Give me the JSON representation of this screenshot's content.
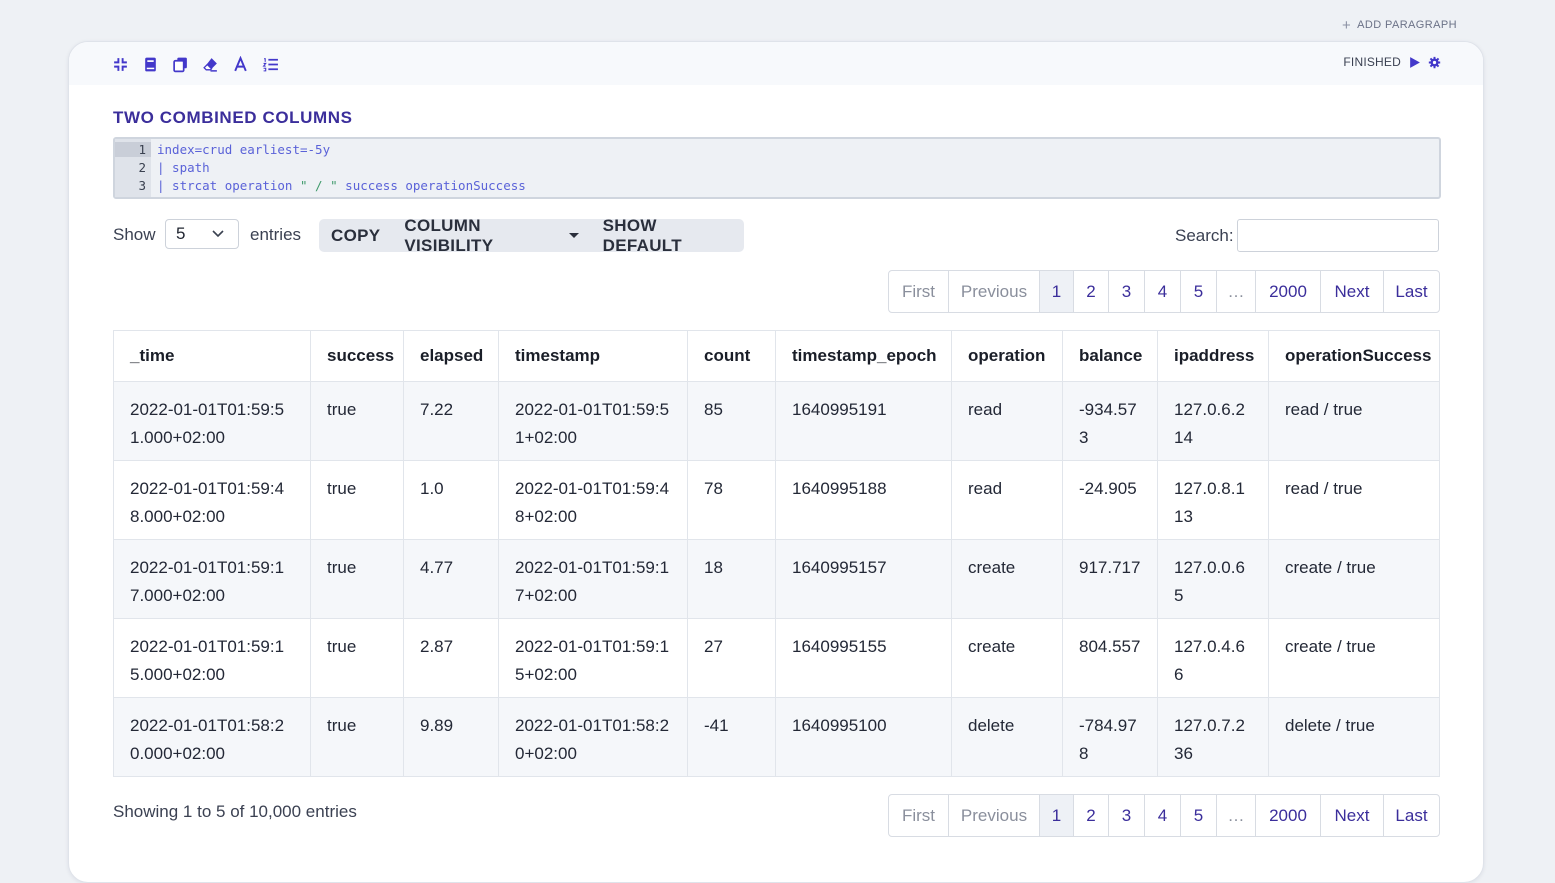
{
  "header": {
    "add_paragraph": "ADD PARAGRAPH"
  },
  "toolbar": {
    "icons": [
      "collapse-icon",
      "book-icon",
      "copy-icon",
      "eraser-icon",
      "font-icon",
      "list-numbered-icon"
    ],
    "status": "FINISHED",
    "run_icon": "play-icon",
    "settings_icon": "gear-icon"
  },
  "paragraph": {
    "title": "TWO COMBINED COLUMNS",
    "code_lines": [
      {
        "num": "1",
        "text": "index=crud earliest=-5y"
      },
      {
        "num": "2",
        "text": "| spath"
      },
      {
        "num": "3",
        "text_pre": "| strcat operation ",
        "text_str": "\" / \"",
        "text_post": " success operationSuccess"
      }
    ]
  },
  "controls": {
    "show_label": "Show",
    "entries_value": "5",
    "entries_label": "entries",
    "copy": "COPY",
    "column_visibility": "COLUMN VISIBILITY",
    "show_default": "SHOW DEFAULT",
    "search_label": "Search:",
    "search_value": ""
  },
  "pagination": {
    "first": "First",
    "previous": "Previous",
    "pages": [
      "1",
      "2",
      "3",
      "4",
      "5"
    ],
    "ellipsis": "…",
    "last_page": "2000",
    "next": "Next",
    "last": "Last"
  },
  "table": {
    "columns": [
      "_time",
      "success",
      "elapsed",
      "timestamp",
      "count",
      "timestamp_epoch",
      "operation",
      "balance",
      "ipaddress",
      "operationSuccess"
    ],
    "rows": [
      [
        "2022-01-01T01:59:51.000+02:00",
        "true",
        "7.22",
        "2022-01-01T01:59:51+02:00",
        "85",
        "1640995191",
        "read",
        "-934.573",
        "127.0.6.214",
        "read / true"
      ],
      [
        "2022-01-01T01:59:48.000+02:00",
        "true",
        "1.0",
        "2022-01-01T01:59:48+02:00",
        "78",
        "1640995188",
        "read",
        "-24.905",
        "127.0.8.113",
        "read / true"
      ],
      [
        "2022-01-01T01:59:17.000+02:00",
        "true",
        "4.77",
        "2022-01-01T01:59:17+02:00",
        "18",
        "1640995157",
        "create",
        "917.717",
        "127.0.0.65",
        "create / true"
      ],
      [
        "2022-01-01T01:59:15.000+02:00",
        "true",
        "2.87",
        "2022-01-01T01:59:15+02:00",
        "27",
        "1640995155",
        "create",
        "804.557",
        "127.0.4.66",
        "create / true"
      ],
      [
        "2022-01-01T01:58:20.000+02:00",
        "true",
        "9.89",
        "2022-01-01T01:58:20+02:00",
        "-41",
        "1640995100",
        "delete",
        "-784.978",
        "127.0.7.236",
        "delete / true"
      ]
    ]
  },
  "footer": {
    "info": "Showing 1 to 5 of 10,000 entries"
  },
  "colors": {
    "accent": "#3b2e9b",
    "code": "#5a62d8",
    "string": "#3f9a6b"
  }
}
